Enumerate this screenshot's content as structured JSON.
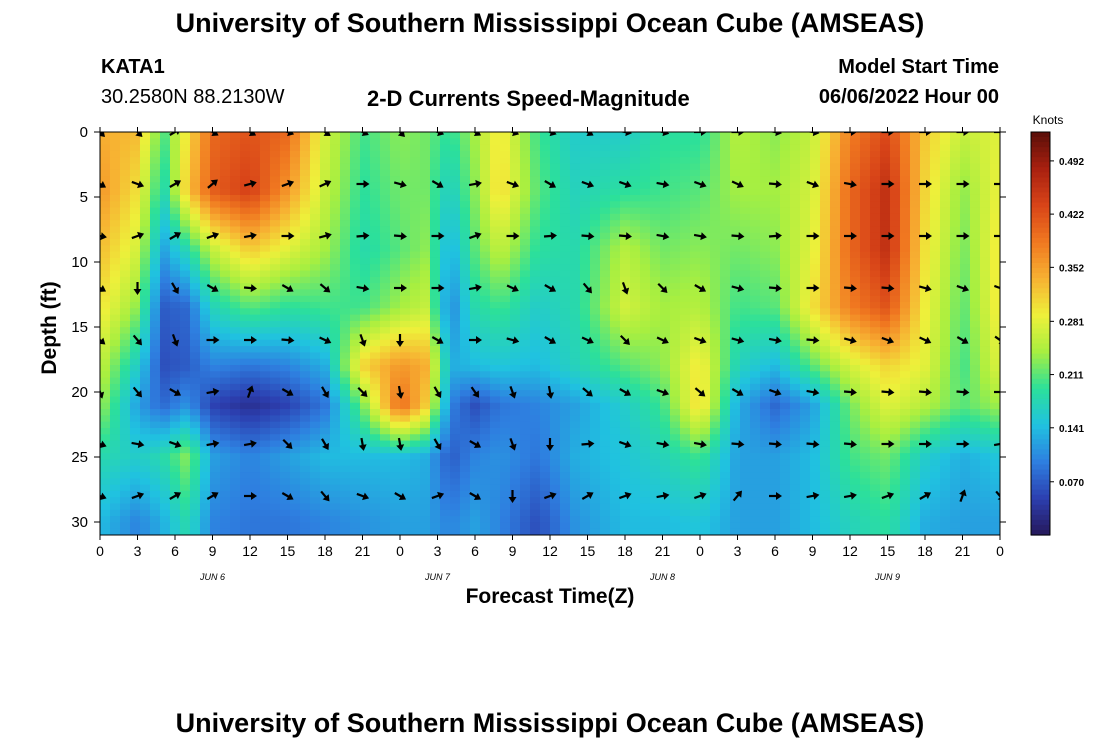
{
  "header": {
    "title": "University of Southern Mississippi Ocean Cube (AMSEAS)",
    "station": "KATA1",
    "coords": "30.2580N  88.2130W",
    "chart_title": "2-D Currents Speed-Magnitude",
    "model_label": "Model Start Time",
    "model_value": "06/06/2022 Hour 00"
  },
  "footer": {
    "title": "University of Southern Mississippi Ocean Cube (AMSEAS)"
  },
  "chart_data": {
    "type": "heatmap",
    "title": "2-D Currents Speed-Magnitude",
    "xlabel": "Forecast Time(Z)",
    "ylabel": "Depth (ft)",
    "x_range_hours": [
      0,
      72
    ],
    "y_range_ft": [
      0,
      31
    ],
    "y_inverted": true,
    "x_ticks": [
      {
        "hour": 0,
        "label": "0"
      },
      {
        "hour": 3,
        "label": "3"
      },
      {
        "hour": 6,
        "label": "6"
      },
      {
        "hour": 9,
        "label": "9"
      },
      {
        "hour": 12,
        "label": "12"
      },
      {
        "hour": 15,
        "label": "15"
      },
      {
        "hour": 18,
        "label": "18"
      },
      {
        "hour": 21,
        "label": "21"
      },
      {
        "hour": 24,
        "label": "0"
      },
      {
        "hour": 27,
        "label": "3"
      },
      {
        "hour": 30,
        "label": "6"
      },
      {
        "hour": 33,
        "label": "9"
      },
      {
        "hour": 36,
        "label": "12"
      },
      {
        "hour": 39,
        "label": "15"
      },
      {
        "hour": 42,
        "label": "18"
      },
      {
        "hour": 45,
        "label": "21"
      },
      {
        "hour": 48,
        "label": "0"
      },
      {
        "hour": 51,
        "label": "3"
      },
      {
        "hour": 54,
        "label": "6"
      },
      {
        "hour": 57,
        "label": "9"
      },
      {
        "hour": 60,
        "label": "12"
      },
      {
        "hour": 63,
        "label": "15"
      },
      {
        "hour": 66,
        "label": "18"
      },
      {
        "hour": 69,
        "label": "21"
      },
      {
        "hour": 72,
        "label": "0"
      }
    ],
    "date_labels": [
      {
        "hour": 9,
        "label": "JUN 6"
      },
      {
        "hour": 27,
        "label": "JUN 7"
      },
      {
        "hour": 45,
        "label": "JUN 8"
      },
      {
        "hour": 63,
        "label": "JUN 9"
      }
    ],
    "y_ticks": [
      {
        "ft": 0,
        "label": "0"
      },
      {
        "ft": 5,
        "label": "5"
      },
      {
        "ft": 10,
        "label": "10"
      },
      {
        "ft": 15,
        "label": "15"
      },
      {
        "ft": 20,
        "label": "20"
      },
      {
        "ft": 25,
        "label": "25"
      },
      {
        "ft": 30,
        "label": "30"
      }
    ],
    "colorbar": {
      "label": "Knots",
      "range": [
        0.0,
        0.53
      ],
      "ticks": [
        {
          "value": 0.07,
          "label": "0.070"
        },
        {
          "value": 0.141,
          "label": "0.141"
        },
        {
          "value": 0.211,
          "label": "0.211"
        },
        {
          "value": 0.281,
          "label": "0.281"
        },
        {
          "value": 0.352,
          "label": "0.352"
        },
        {
          "value": 0.422,
          "label": "0.422"
        },
        {
          "value": 0.492,
          "label": "0.492"
        }
      ],
      "colors": [
        "#26185a",
        "#2c3fb0",
        "#2e7fe0",
        "#20c2e0",
        "#2ce09a",
        "#a8ef40",
        "#eef03a",
        "#f7b132",
        "#f07820",
        "#d84418",
        "#a82010",
        "#5a0e08"
      ]
    },
    "speed_anchors": [
      {
        "hour": 0,
        "v": [
          0.34,
          0.36,
          0.33,
          0.3,
          0.26,
          0.24,
          0.18,
          0.14
        ]
      },
      {
        "hour": 3,
        "v": [
          0.33,
          0.3,
          0.27,
          0.23,
          0.16,
          0.12,
          0.16,
          0.1
        ]
      },
      {
        "hour": 5,
        "v": [
          0.2,
          0.17,
          0.12,
          0.07,
          0.06,
          0.08,
          0.18,
          0.13
        ]
      },
      {
        "hour": 7,
        "v": [
          0.3,
          0.32,
          0.18,
          0.08,
          0.07,
          0.11,
          0.23,
          0.18
        ]
      },
      {
        "hour": 9,
        "v": [
          0.4,
          0.41,
          0.26,
          0.17,
          0.1,
          0.05,
          0.12,
          0.1
        ]
      },
      {
        "hour": 12,
        "v": [
          0.42,
          0.44,
          0.32,
          0.21,
          0.09,
          0.03,
          0.1,
          0.09
        ]
      },
      {
        "hour": 15,
        "v": [
          0.4,
          0.36,
          0.28,
          0.19,
          0.1,
          0.05,
          0.12,
          0.09
        ]
      },
      {
        "hour": 18,
        "v": [
          0.27,
          0.26,
          0.24,
          0.2,
          0.13,
          0.09,
          0.14,
          0.1
        ]
      },
      {
        "hour": 21,
        "v": [
          0.2,
          0.19,
          0.18,
          0.2,
          0.31,
          0.22,
          0.14,
          0.11
        ]
      },
      {
        "hour": 24,
        "v": [
          0.23,
          0.22,
          0.21,
          0.24,
          0.36,
          0.4,
          0.14,
          0.12
        ]
      },
      {
        "hour": 26,
        "v": [
          0.22,
          0.22,
          0.23,
          0.26,
          0.34,
          0.32,
          0.13,
          0.12
        ]
      },
      {
        "hour": 28,
        "v": [
          0.19,
          0.16,
          0.13,
          0.1,
          0.13,
          0.1,
          0.07,
          0.1
        ]
      },
      {
        "hour": 30,
        "v": [
          0.24,
          0.23,
          0.21,
          0.18,
          0.14,
          0.06,
          0.1,
          0.12
        ]
      },
      {
        "hour": 32,
        "v": [
          0.3,
          0.31,
          0.26,
          0.2,
          0.15,
          0.09,
          0.11,
          0.1
        ]
      },
      {
        "hour": 35,
        "v": [
          0.2,
          0.21,
          0.19,
          0.16,
          0.14,
          0.1,
          0.09,
          0.06
        ]
      },
      {
        "hour": 38,
        "v": [
          0.16,
          0.17,
          0.18,
          0.18,
          0.17,
          0.12,
          0.13,
          0.11
        ]
      },
      {
        "hour": 42,
        "v": [
          0.16,
          0.19,
          0.25,
          0.27,
          0.21,
          0.16,
          0.15,
          0.14
        ]
      },
      {
        "hour": 45,
        "v": [
          0.19,
          0.2,
          0.22,
          0.24,
          0.23,
          0.2,
          0.17,
          0.14
        ]
      },
      {
        "hour": 48,
        "v": [
          0.19,
          0.21,
          0.23,
          0.25,
          0.3,
          0.31,
          0.2,
          0.15
        ]
      },
      {
        "hour": 51,
        "v": [
          0.25,
          0.24,
          0.22,
          0.2,
          0.17,
          0.13,
          0.12,
          0.12
        ]
      },
      {
        "hour": 54,
        "v": [
          0.23,
          0.24,
          0.23,
          0.21,
          0.14,
          0.08,
          0.12,
          0.12
        ]
      },
      {
        "hour": 57,
        "v": [
          0.26,
          0.27,
          0.28,
          0.3,
          0.21,
          0.12,
          0.14,
          0.14
        ]
      },
      {
        "hour": 60,
        "v": [
          0.38,
          0.4,
          0.4,
          0.38,
          0.27,
          0.22,
          0.2,
          0.17
        ]
      },
      {
        "hour": 63,
        "v": [
          0.43,
          0.46,
          0.46,
          0.42,
          0.31,
          0.28,
          0.22,
          0.19
        ]
      },
      {
        "hour": 66,
        "v": [
          0.32,
          0.31,
          0.3,
          0.29,
          0.28,
          0.25,
          0.16,
          0.13
        ]
      },
      {
        "hour": 69,
        "v": [
          0.26,
          0.23,
          0.22,
          0.21,
          0.2,
          0.21,
          0.13,
          0.12
        ]
      },
      {
        "hour": 72,
        "v": [
          0.28,
          0.29,
          0.3,
          0.3,
          0.28,
          0.24,
          0.15,
          0.12
        ]
      }
    ],
    "speed_anchor_depths_ft": [
      0,
      4.5,
      9,
      13.5,
      18,
      21,
      25,
      30
    ],
    "velocity_vectors": {
      "depths_ft": [
        0,
        4,
        8,
        12,
        16,
        20,
        24,
        28
      ],
      "times_hours": [
        0,
        3,
        6,
        9,
        12,
        15,
        18,
        21,
        24,
        27,
        30,
        33,
        36,
        39,
        42,
        45,
        48,
        51,
        54,
        57,
        60,
        63,
        66,
        69,
        72
      ],
      "note": "direction in compass degrees the current flows toward",
      "directions_deg": [
        [
          135,
          135,
          60,
          120,
          120,
          110,
          125,
          115,
          135,
          110,
          120,
          110,
          110,
          120,
          100,
          105,
          90,
          90,
          100,
          100,
          90,
          90,
          90,
          90,
          90
        ],
        [
          120,
          110,
          60,
          50,
          75,
          70,
          65,
          90,
          105,
          120,
          80,
          110,
          120,
          110,
          110,
          100,
          110,
          115,
          95,
          110,
          100,
          90,
          90,
          90,
          90
        ],
        [
          100,
          70,
          60,
          70,
          80,
          90,
          75,
          85,
          95,
          90,
          70,
          90,
          85,
          95,
          95,
          100,
          100,
          95,
          85,
          90,
          90,
          90,
          90,
          90,
          90
        ],
        [
          120,
          180,
          150,
          120,
          95,
          120,
          130,
          100,
          90,
          90,
          80,
          115,
          120,
          140,
          160,
          135,
          120,
          105,
          95,
          90,
          95,
          95,
          105,
          110,
          110
        ],
        [
          130,
          140,
          160,
          90,
          90,
          95,
          115,
          160,
          180,
          120,
          90,
          105,
          120,
          115,
          135,
          115,
          110,
          105,
          100,
          95,
          105,
          110,
          115,
          120,
          125
        ],
        [
          160,
          140,
          120,
          80,
          20,
          120,
          150,
          135,
          170,
          150,
          145,
          160,
          170,
          130,
          120,
          110,
          130,
          120,
          110,
          100,
          95,
          95,
          95,
          95,
          90
        ],
        [
          110,
          100,
          110,
          80,
          80,
          135,
          150,
          170,
          170,
          150,
          120,
          160,
          180,
          85,
          110,
          100,
          100,
          95,
          95,
          95,
          95,
          90,
          90,
          90,
          80
        ],
        [
          110,
          70,
          60,
          60,
          90,
          120,
          140,
          110,
          120,
          70,
          120,
          180,
          70,
          60,
          70,
          80,
          70,
          40,
          90,
          80,
          80,
          70,
          60,
          20,
          140
        ]
      ]
    }
  }
}
